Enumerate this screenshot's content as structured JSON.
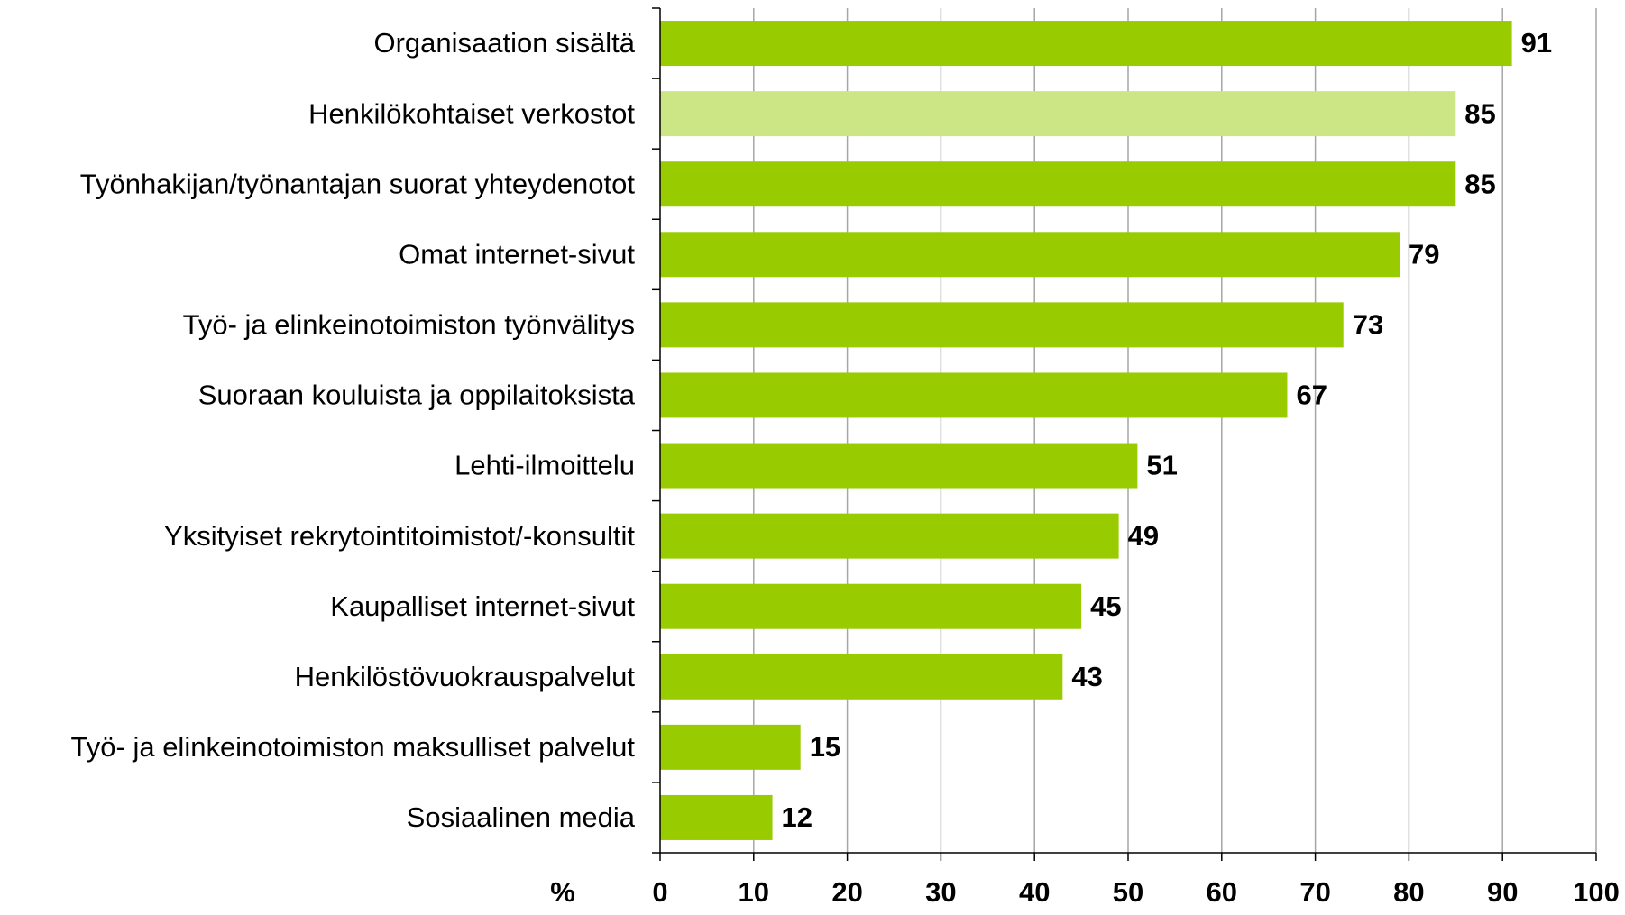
{
  "chart_data": {
    "type": "barh",
    "categories": [
      "Organisaation sisältä",
      "Henkilökohtaiset verkostot",
      "Työnhakijan/työnantajan suorat yhteydenotot",
      "Omat internet-sivut",
      "Työ- ja elinkeinotoimiston työnvälitys",
      "Suoraan kouluista ja oppilaitoksista",
      "Lehti-ilmoittelu",
      "Yksityiset rekrytointitoimistot/-konsultit",
      "Kaupalliset internet-sivut",
      "Henkilöstövuokrauspalvelut",
      "Työ- ja elinkeinotoimiston maksulliset palvelut",
      "Sosiaalinen media"
    ],
    "values": [
      91,
      85,
      85,
      79,
      73,
      67,
      51,
      49,
      45,
      43,
      15,
      12
    ],
    "colors": [
      "#99cc00",
      "#cde685",
      "#99cc00",
      "#99cc00",
      "#99cc00",
      "#99cc00",
      "#99cc00",
      "#99cc00",
      "#99cc00",
      "#99cc00",
      "#99cc00",
      "#99cc00"
    ],
    "xlabel": "%",
    "xlim": [
      0,
      100
    ],
    "xticks": [
      0,
      10,
      20,
      30,
      40,
      50,
      60,
      70,
      80,
      90,
      100
    ],
    "grid": true
  }
}
